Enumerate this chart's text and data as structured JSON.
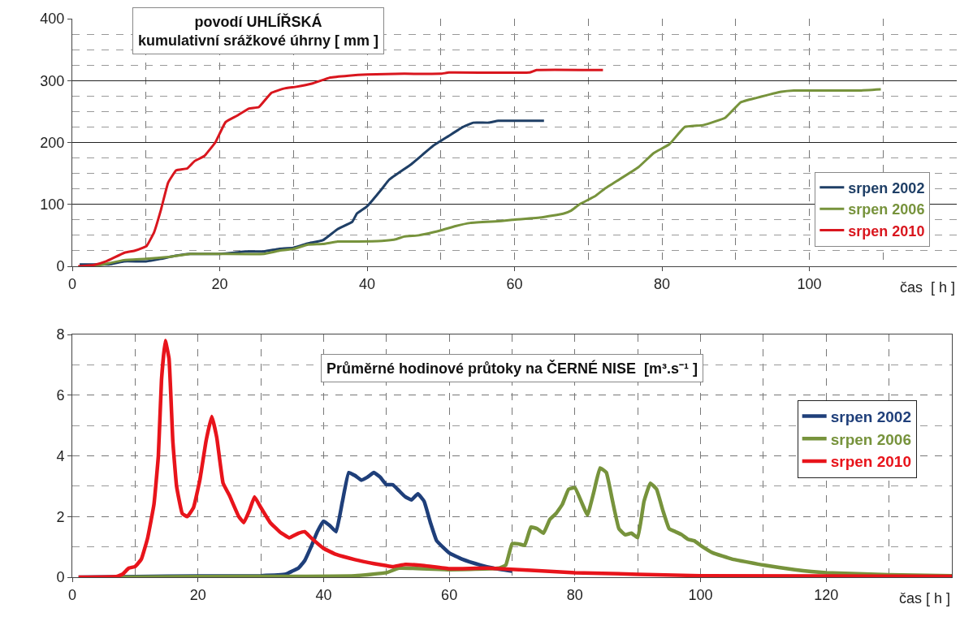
{
  "chart_data": [
    {
      "type": "line",
      "title": "povodí UHLÍŘSKÁ\nkumulativní srážkové úhrny [ mm ]",
      "xlabel": "čas  [ h ]",
      "xlim": [
        0,
        120
      ],
      "xticks": [
        0,
        20,
        40,
        60,
        80,
        100
      ],
      "ylim": [
        0,
        400
      ],
      "yticks": [
        0,
        100,
        200,
        300,
        400
      ],
      "grid": true,
      "legend": "bottom right",
      "series": [
        {
          "name": "srpen 2002",
          "color": "#1f3f66",
          "x": [
            1,
            5,
            7,
            10,
            12,
            14,
            16,
            20,
            22,
            23.5,
            26,
            28,
            30,
            32,
            34,
            36,
            38,
            38.6,
            40,
            42,
            43,
            46,
            49,
            51,
            53,
            54.4,
            56.5,
            57.8,
            64
          ],
          "values": [
            3,
            3,
            8,
            8,
            12,
            17,
            20,
            20,
            22,
            24,
            24,
            28,
            30,
            37,
            42,
            60,
            72,
            85,
            97,
            125,
            140,
            165,
            195,
            210,
            225,
            232,
            232,
            235,
            235
          ]
        },
        {
          "name": "srpen 2006",
          "color": "#77933c",
          "x": [
            3,
            5,
            7,
            10,
            13,
            16,
            20,
            26,
            28,
            30,
            32,
            34,
            36,
            38,
            42,
            44,
            45,
            47,
            49,
            50,
            52,
            54,
            58.2,
            59.7,
            63.7,
            66.6,
            67.7,
            68.8,
            70.9,
            72.2,
            76.8,
            78.9,
            81,
            83.1,
            85.6,
            88.6,
            90.7,
            92.8,
            96.2,
            97.9,
            106.7,
            109.7
          ],
          "values": [
            0,
            5,
            10,
            12,
            15,
            20,
            20,
            20,
            25,
            28,
            35,
            36,
            40,
            40,
            41,
            44,
            48,
            50,
            55,
            58,
            65,
            70,
            73,
            75,
            79,
            85,
            90,
            100,
            113,
            125,
            160,
            183,
            197,
            225,
            228,
            240,
            265,
            272,
            282,
            284,
            284,
            286
          ]
        },
        {
          "name": "srpen 2010",
          "color": "#d9161e",
          "x": [
            0.8,
            2.9,
            4.6,
            7.1,
            8.4,
            9.6,
            10.1,
            11.1,
            12,
            13,
            14.1,
            15.6,
            16.6,
            17.9,
            19.4,
            20.8,
            22.3,
            24,
            25.3,
            27,
            28.7,
            30.4,
            32.5,
            35,
            37.5,
            40,
            45,
            50,
            51.1,
            62,
            63,
            72
          ],
          "values": [
            0,
            2,
            8,
            22,
            25,
            30,
            33,
            55,
            90,
            135,
            155,
            158,
            170,
            178,
            200,
            233,
            243,
            255,
            257,
            280,
            287,
            290,
            295,
            305,
            308,
            310,
            311,
            311,
            313,
            313,
            317,
            317
          ]
        }
      ]
    },
    {
      "type": "line",
      "title": "Průměrné hodinové průtoky na ČERNÉ NISE  [m³.s⁻¹ ]",
      "xlabel": "čas [ h ]",
      "xlim": [
        0,
        140
      ],
      "xticks": [
        0,
        20,
        40,
        60,
        80,
        100,
        120
      ],
      "ylim": [
        0,
        8
      ],
      "yticks": [
        0,
        2,
        4,
        6,
        8
      ],
      "grid": true,
      "legend": "right",
      "series": [
        {
          "name": "srpen 2002",
          "color": "#1f3f7a",
          "x": [
            1,
            10,
            20,
            30,
            34,
            35,
            36,
            37,
            38,
            39,
            40,
            41,
            42,
            43,
            44,
            45,
            46,
            47,
            48,
            49,
            50,
            51,
            52,
            53,
            54,
            55,
            56,
            57,
            58,
            60,
            62,
            65,
            67,
            70
          ],
          "values": [
            0,
            0.02,
            0.04,
            0.05,
            0.1,
            0.2,
            0.3,
            0.55,
            1.0,
            1.5,
            1.85,
            1.7,
            1.5,
            2.5,
            3.45,
            3.35,
            3.2,
            3.3,
            3.45,
            3.3,
            3.05,
            3.05,
            2.85,
            2.65,
            2.55,
            2.75,
            2.5,
            1.8,
            1.2,
            0.8,
            0.6,
            0.4,
            0.3,
            0.2
          ]
        },
        {
          "name": "srpen 2006",
          "color": "#77933c",
          "x": [
            7,
            20,
            35,
            45,
            50,
            52,
            60,
            68,
            69,
            70,
            71,
            72,
            73,
            74,
            75,
            76,
            77,
            78,
            79,
            80,
            81,
            82,
            83,
            84,
            85,
            86,
            87,
            88,
            89,
            90,
            91,
            92,
            93,
            94,
            95,
            96,
            97,
            98,
            99,
            100,
            102,
            105,
            110,
            115,
            120,
            130,
            140
          ],
          "values": [
            0,
            0.02,
            0.03,
            0.05,
            0.15,
            0.3,
            0.25,
            0.3,
            0.4,
            1.1,
            1.1,
            1.05,
            1.65,
            1.6,
            1.45,
            1.9,
            2.1,
            2.4,
            2.9,
            2.95,
            2.5,
            2.05,
            2.8,
            3.6,
            3.45,
            2.5,
            1.6,
            1.4,
            1.45,
            1.3,
            2.5,
            3.1,
            2.9,
            2.2,
            1.6,
            1.5,
            1.4,
            1.25,
            1.2,
            1.05,
            0.8,
            0.6,
            0.4,
            0.25,
            0.15,
            0.08,
            0.05
          ]
        },
        {
          "name": "srpen 2010",
          "color": "#e8141b",
          "x": [
            1,
            7,
            8,
            9,
            10,
            11,
            12,
            13,
            13.7,
            14.2,
            14.8,
            15.4,
            16,
            16.6,
            17.5,
            18.3,
            19.3,
            20.3,
            21.3,
            22.2,
            23,
            24,
            25,
            26.5,
            27.3,
            28.2,
            29,
            30,
            31.5,
            33,
            34.5,
            36,
            37,
            38,
            40,
            42,
            45,
            48,
            50,
            51,
            53,
            56,
            60,
            66,
            80,
            100,
            140
          ],
          "values": [
            0,
            0.02,
            0.1,
            0.3,
            0.35,
            0.6,
            1.3,
            2.4,
            4,
            6.5,
            7.8,
            7.2,
            4.5,
            3,
            2.1,
            2.0,
            2.3,
            3.2,
            4.5,
            5.3,
            4.6,
            3.1,
            2.7,
            2.0,
            1.8,
            2.2,
            2.65,
            2.3,
            1.8,
            1.5,
            1.3,
            1.45,
            1.5,
            1.3,
            0.95,
            0.75,
            0.58,
            0.45,
            0.38,
            0.35,
            0.42,
            0.38,
            0.28,
            0.3,
            0.15,
            0.05,
            0.03
          ]
        }
      ]
    }
  ]
}
